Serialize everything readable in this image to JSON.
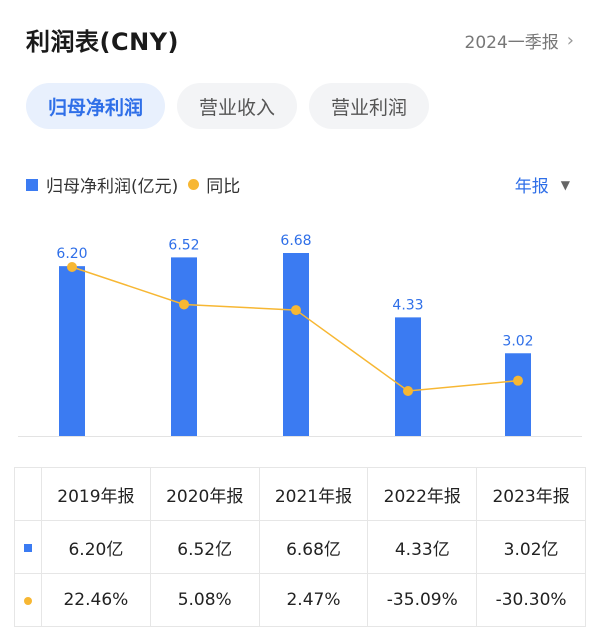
{
  "header": {
    "title": "利润表(CNY)",
    "period": "2024一季报"
  },
  "tabs": [
    {
      "label": "归母净利润",
      "active": true
    },
    {
      "label": "营业收入",
      "active": false
    },
    {
      "label": "营业利润",
      "active": false
    }
  ],
  "legend": {
    "bar": "归母净利润(亿元)",
    "line": "同比"
  },
  "annual_selector": "年报",
  "colors": {
    "bar": "#3b7bf2",
    "line": "#f7b733",
    "positive": "#e8473e",
    "negative": "#2aa65a",
    "accent": "#2f6fe8"
  },
  "chart_data": {
    "type": "bar",
    "categories": [
      "2019年报",
      "2020年报",
      "2021年报",
      "2022年报",
      "2023年报"
    ],
    "series": [
      {
        "name": "归母净利润(亿元)",
        "type": "bar",
        "values": [
          6.2,
          6.52,
          6.68,
          4.33,
          3.02
        ],
        "labels": [
          "6.20",
          "6.52",
          "6.68",
          "4.33",
          "3.02"
        ]
      },
      {
        "name": "同比",
        "type": "line",
        "values": [
          22.46,
          5.08,
          2.47,
          -35.09,
          -30.3
        ]
      }
    ],
    "legend_position": "top-left"
  },
  "table": {
    "headers": [
      "2019年报",
      "2020年报",
      "2021年报",
      "2022年报",
      "2023年报"
    ],
    "profit": [
      "6.20亿",
      "6.52亿",
      "6.68亿",
      "4.33亿",
      "3.02亿"
    ],
    "yoy": [
      "22.46%",
      "5.08%",
      "2.47%",
      "-35.09%",
      "-30.30%"
    ]
  }
}
